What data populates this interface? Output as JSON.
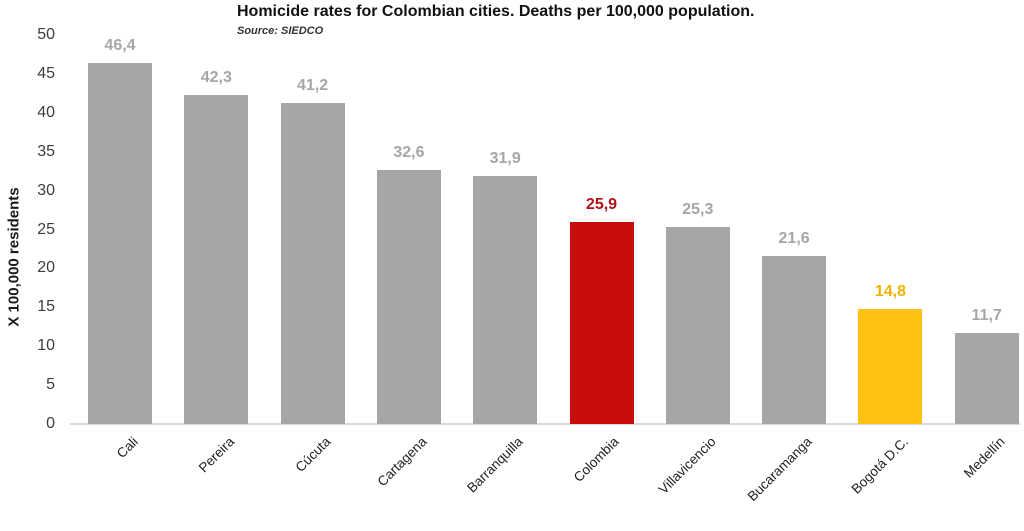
{
  "chart_data": {
    "type": "bar",
    "title": "Homicide rates for Colombian cities. Deaths per 100,000 population.",
    "subtitle": "Source: SIEDCO",
    "xlabel": "",
    "ylabel": "X 100,000 residents",
    "ylim": [
      0,
      50
    ],
    "yticks": [
      0,
      5,
      10,
      15,
      20,
      25,
      30,
      35,
      40,
      45,
      50
    ],
    "grid": false,
    "legend_position": "none",
    "categories": [
      "Cali",
      "Pereira",
      "Cúcuta",
      "Cartagena",
      "Barranquilla",
      "Colombia",
      "Villavicencio",
      "Bucaramanga",
      "Bogotá D.C.",
      "Medellín"
    ],
    "values": [
      46.4,
      42.3,
      41.2,
      32.6,
      31.9,
      25.9,
      25.3,
      21.6,
      14.8,
      11.7
    ],
    "value_labels": [
      "46,4",
      "42,3",
      "41,2",
      "32,6",
      "31,9",
      "25,9",
      "25,3",
      "21,6",
      "14,8",
      "11,7"
    ],
    "bar_color_keys": [
      "gray",
      "gray",
      "gray",
      "gray",
      "gray",
      "red",
      "gray",
      "gray",
      "yellow",
      "gray"
    ],
    "colors": {
      "gray_bar": "#a6a6a6",
      "gray_label": "#a6a6a6",
      "red_bar": "#c80d0d",
      "red_label": "#b01116",
      "yellow_bar": "#fdc013",
      "yellow_label": "#f0b400",
      "axis_line": "#d9d9d9",
      "tick_text": "#3d3d3d",
      "category_text": "#1f1f1f"
    }
  }
}
